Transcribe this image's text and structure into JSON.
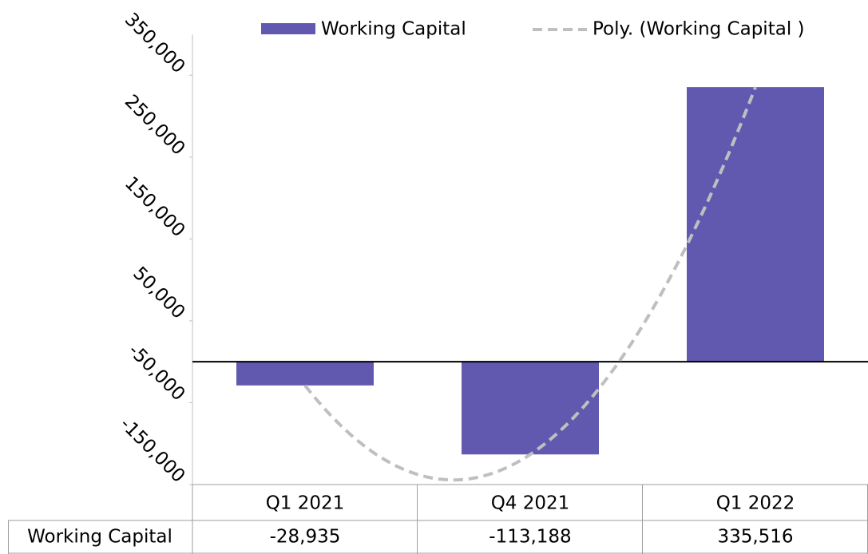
{
  "chart_data": {
    "type": "bar",
    "categories": [
      "Q1 2021",
      "Q4 2021",
      "Q1 2022"
    ],
    "series": [
      {
        "name": "Working Capital",
        "color": "#6159b0",
        "values": [
          -28935,
          -113188,
          335516
        ],
        "value_labels": [
          "-28,935",
          "-113,188",
          "335,516"
        ]
      }
    ],
    "trendline": {
      "name": "Poly. (Working Capital )",
      "kind": "polynomial",
      "order": 2,
      "color": "#bfbfbf"
    },
    "ylim": [
      -150000,
      400000
    ],
    "yticks": [
      {
        "value": -150000,
        "label": "-150,000"
      },
      {
        "value": -50000,
        "label": "-50,000"
      },
      {
        "value": 50000,
        "label": "50,000"
      },
      {
        "value": 150000,
        "label": "150,000"
      },
      {
        "value": 250000,
        "label": "250,000"
      },
      {
        "value": 350000,
        "label": "350,000"
      }
    ],
    "legend": "top",
    "data_table": true
  }
}
